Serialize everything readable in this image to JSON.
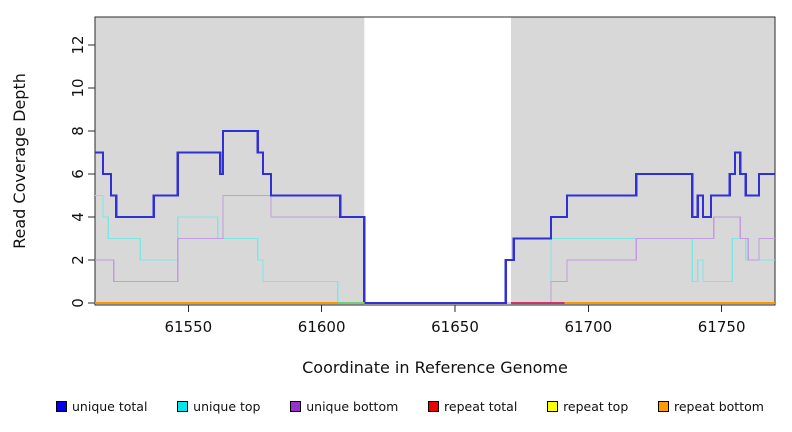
{
  "chart_data": {
    "type": "line",
    "line_style": "step",
    "title": "",
    "xlabel": "Coordinate in Reference Genome",
    "ylabel": "Read Coverage Depth",
    "x_ticks": [
      61550,
      61600,
      61650,
      61700,
      61750
    ],
    "y_ticks": [
      0,
      2,
      4,
      6,
      8,
      10,
      12
    ],
    "x_range": [
      61515,
      61770
    ],
    "y_range": [
      0,
      12
    ],
    "grid": false,
    "legend_position": "bottom",
    "panel_color": "#d8d8d8",
    "frame_color": "#2a2a2a",
    "shaded_regions": [
      [
        61515,
        61616
      ],
      [
        61671,
        61770
      ]
    ],
    "no_data_gap": [
      61616,
      61671
    ],
    "series": [
      {
        "id": "unique-top",
        "name": "unique top",
        "color": "#7fe6e6",
        "stroke_width": 1.4,
        "z": 1,
        "segments": [
          [
            [
              61515,
              5
            ],
            [
              61518,
              4
            ],
            [
              61520,
              3
            ],
            [
              61532,
              2
            ],
            [
              61546,
              4
            ],
            [
              61561,
              3
            ],
            [
              61576,
              2
            ],
            [
              61578,
              1
            ],
            [
              61606,
              0
            ],
            [
              61686,
              3
            ],
            [
              61739,
              1
            ],
            [
              61741,
              2
            ],
            [
              61743,
              1
            ],
            [
              61754,
              3
            ],
            [
              61759,
              2
            ],
            [
              61770,
              2
            ]
          ]
        ]
      },
      {
        "id": "unique-bottom",
        "name": "unique bottom",
        "color": "#c49ae0",
        "stroke_width": 1.4,
        "z": 2,
        "segments": [
          [
            [
              61515,
              2
            ],
            [
              61522,
              1
            ],
            [
              61546,
              3
            ],
            [
              61563,
              5
            ],
            [
              61581,
              4
            ],
            [
              61616,
              0
            ],
            [
              61686,
              1
            ],
            [
              61692,
              2
            ],
            [
              61718,
              3
            ],
            [
              61747,
              4
            ],
            [
              61757,
              3
            ],
            [
              61760,
              2
            ],
            [
              61764,
              3
            ],
            [
              61770,
              3
            ]
          ]
        ]
      },
      {
        "id": "unique-total",
        "name": "unique total",
        "color": "#3030d6",
        "stroke_width": 2.2,
        "z": 3,
        "segments": [
          [
            [
              61515,
              7
            ],
            [
              61518,
              6
            ],
            [
              61521,
              5
            ],
            [
              61523,
              4
            ],
            [
              61537,
              5
            ],
            [
              61546,
              7
            ],
            [
              61562,
              6
            ],
            [
              61563,
              8
            ],
            [
              61576,
              7
            ],
            [
              61578,
              6
            ],
            [
              61581,
              5
            ],
            [
              61607,
              4
            ],
            [
              61616,
              0
            ],
            [
              61669,
              2
            ],
            [
              61672,
              3
            ],
            [
              61686,
              4
            ],
            [
              61692,
              5
            ],
            [
              61718,
              6
            ],
            [
              61739,
              4
            ],
            [
              61741,
              5
            ],
            [
              61743,
              4
            ],
            [
              61746,
              5
            ],
            [
              61753,
              6
            ],
            [
              61755,
              7
            ],
            [
              61757,
              6
            ],
            [
              61759,
              5
            ],
            [
              61764,
              6
            ],
            [
              61770,
              6
            ]
          ]
        ]
      },
      {
        "id": "repeat-bottom",
        "name": "repeat bottom",
        "color": "#ff9800",
        "stroke_width": 1.8,
        "z": 4,
        "segments": [
          [
            [
              61515,
              0
            ],
            [
              61616,
              0
            ]
          ],
          [
            [
              61671,
              0
            ],
            [
              61770,
              0
            ]
          ]
        ]
      },
      {
        "id": "repeat-top",
        "name": "repeat top",
        "color": "#eded00",
        "stroke_width": 1.4,
        "z": 5,
        "segments": []
      },
      {
        "id": "repeat-total",
        "name": "repeat total",
        "color": "#cc3366",
        "stroke_width": 1.6,
        "z": 6,
        "segments": [
          [
            [
              61671,
              0
            ],
            [
              61691,
              0
            ]
          ]
        ]
      }
    ],
    "zero_overlap_segments": [
      {
        "name": "unique-top-over-repeat-bottom-overlap",
        "color": "#77cc77",
        "from": 61606,
        "to": 61616
      }
    ]
  },
  "legend": {
    "items": [
      {
        "label": "unique total",
        "color": "#0000ee"
      },
      {
        "label": "unique top",
        "color": "#00e6ee"
      },
      {
        "label": "unique bottom",
        "color": "#9932cc"
      },
      {
        "label": "repeat total",
        "color": "#ee0000"
      },
      {
        "label": "repeat top",
        "color": "#ffff00"
      },
      {
        "label": "repeat bottom",
        "color": "#ff9d00"
      }
    ]
  }
}
